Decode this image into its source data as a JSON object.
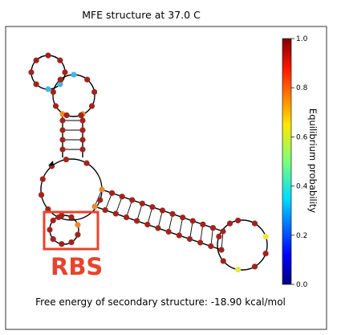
{
  "title": "MFE structure at 37.0 C",
  "footer": "Free energy of secondary structure: -18.90 kcal/mol",
  "annotation": {
    "label": "RBS",
    "color": "#e8432d"
  },
  "colorbar": {
    "label": "Equilibrium probability",
    "ticks": [
      "0.0",
      "0.2",
      "0.4",
      "0.6",
      "0.8",
      "1.0"
    ],
    "range": [
      0.0,
      1.0
    ],
    "colormap": "jet"
  },
  "node_colors": {
    "high": "#a3231c",
    "orange": "#f08a24",
    "cyan": "#3fb8e0",
    "yellow": "#e8e83a"
  },
  "structure": {
    "backbone_color": "#000000",
    "pair_line_color": "#000000"
  }
}
